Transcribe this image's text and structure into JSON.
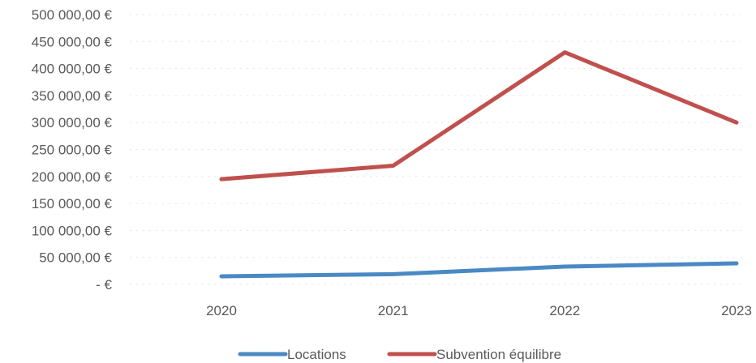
{
  "chart_data": {
    "type": "line",
    "categories": [
      "2020",
      "2021",
      "2022",
      "2023"
    ],
    "series": [
      {
        "name": "Locations",
        "color": "#4a89c4",
        "values": [
          15000,
          19000,
          33000,
          39000
        ]
      },
      {
        "name": "Subvention équilibre",
        "color": "#c0504d",
        "values": [
          195000,
          220000,
          430000,
          300000
        ]
      }
    ],
    "y_tick_values": [
      0,
      50000,
      100000,
      150000,
      200000,
      250000,
      300000,
      350000,
      400000,
      450000,
      500000
    ],
    "y_tick_labels": [
      "- €",
      "50 000,00 €",
      "100 000,00 €",
      "150 000,00 €",
      "200 000,00 €",
      "250 000,00 €",
      "300 000,00 €",
      "350 000,00 €",
      "400 000,00 €",
      "450 000,00 €",
      "500 000,00 €"
    ],
    "ylim": [
      0,
      500000
    ],
    "grid": true,
    "legend_position": "bottom",
    "title": "",
    "xlabel": "",
    "ylabel": ""
  }
}
